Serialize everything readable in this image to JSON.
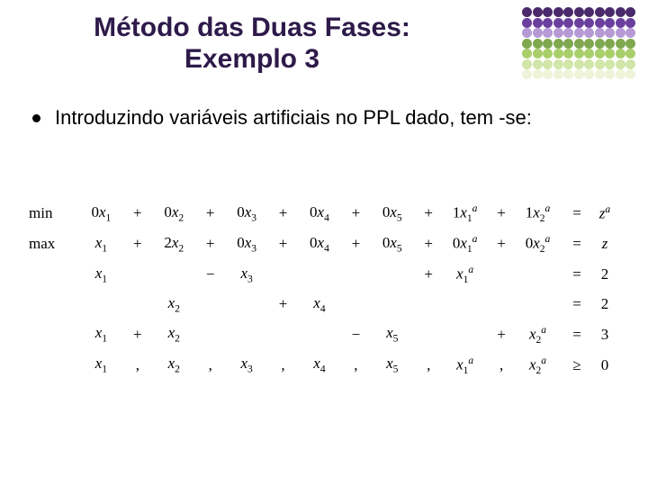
{
  "title_line1": "Método das Duas Fases:",
  "title_line2": "Exemplo 3",
  "bullet_text": "Introduzindo variáveis artificiais no PPL dado, tem -se:",
  "dot_grid": {
    "rows": 7,
    "cols": 11,
    "colors": [
      "#4a2a6a",
      "#4a2a6a",
      "#4a2a6a",
      "#4a2a6a",
      "#4a2a6a",
      "#4a2a6a",
      "#4a2a6a",
      "#4a2a6a",
      "#4a2a6a",
      "#4a2a6a",
      "#4a2a6a",
      "#6b3f9e",
      "#6b3f9e",
      "#6b3f9e",
      "#6b3f9e",
      "#6b3f9e",
      "#6b3f9e",
      "#6b3f9e",
      "#6b3f9e",
      "#6b3f9e",
      "#6b3f9e",
      "#6b3f9e",
      "#b59ad6",
      "#b59ad6",
      "#b59ad6",
      "#b59ad6",
      "#b59ad6",
      "#b59ad6",
      "#b59ad6",
      "#b59ad6",
      "#b59ad6",
      "#b59ad6",
      "#b59ad6",
      "#7fa84f",
      "#7fa84f",
      "#7fa84f",
      "#7fa84f",
      "#7fa84f",
      "#7fa84f",
      "#7fa84f",
      "#7fa84f",
      "#7fa84f",
      "#7fa84f",
      "#7fa84f",
      "#a9cf6b",
      "#a9cf6b",
      "#a9cf6b",
      "#a9cf6b",
      "#a9cf6b",
      "#a9cf6b",
      "#a9cf6b",
      "#a9cf6b",
      "#a9cf6b",
      "#a9cf6b",
      "#a9cf6b",
      "#d1e6a8",
      "#d1e6a8",
      "#d1e6a8",
      "#d1e6a8",
      "#d1e6a8",
      "#d1e6a8",
      "#d1e6a8",
      "#d1e6a8",
      "#d1e6a8",
      "#d1e6a8",
      "#d1e6a8",
      "#eef4d9",
      "#eef4d9",
      "#eef4d9",
      "#eef4d9",
      "#eef4d9",
      "#eef4d9",
      "#eef4d9",
      "#eef4d9",
      "#eef4d9",
      "#eef4d9",
      "#eef4d9"
    ]
  },
  "math": {
    "rows": [
      {
        "label": "min",
        "c": [
          "0x₁",
          "+",
          "0x₂",
          "+",
          "0x₃",
          "+",
          "0x₄",
          "+",
          "0x₅",
          "+",
          "1x₁ᵃ",
          "+",
          "1x₂ᵃ"
        ],
        "eq": "=",
        "rhs": "zᵃ"
      },
      {
        "label": "max",
        "c": [
          "x₁",
          "+",
          "2x₂",
          "+",
          "0x₃",
          "+",
          "0x₄",
          "+",
          "0x₅",
          "+",
          "0x₁ᵃ",
          "+",
          "0x₂ᵃ"
        ],
        "eq": "=",
        "rhs": "z"
      },
      {
        "label": "",
        "c": [
          "x₁",
          "",
          "",
          "−",
          "x₃",
          "",
          "",
          "",
          "",
          "+",
          "x₁ᵃ",
          "",
          ""
        ],
        "eq": "=",
        "rhs": "2"
      },
      {
        "label": "",
        "c": [
          "",
          "",
          "x₂",
          "",
          "",
          "+",
          "x₄",
          "",
          "",
          "",
          "",
          "",
          ""
        ],
        "eq": "=",
        "rhs": "2"
      },
      {
        "label": "",
        "c": [
          "x₁",
          "+",
          "x₂",
          "",
          "",
          "",
          "",
          "−",
          "x₅",
          "",
          "",
          "+",
          "x₂ᵃ"
        ],
        "eq": "=",
        "rhs": "3"
      },
      {
        "label": "",
        "c": [
          "x₁",
          ",",
          "x₂",
          ",",
          "x₃",
          ",",
          "x₄",
          ",",
          "x₅",
          ",",
          "x₁ᵃ",
          ",",
          "x₂ᵃ"
        ],
        "eq": "≥",
        "rhs": "0"
      }
    ]
  }
}
